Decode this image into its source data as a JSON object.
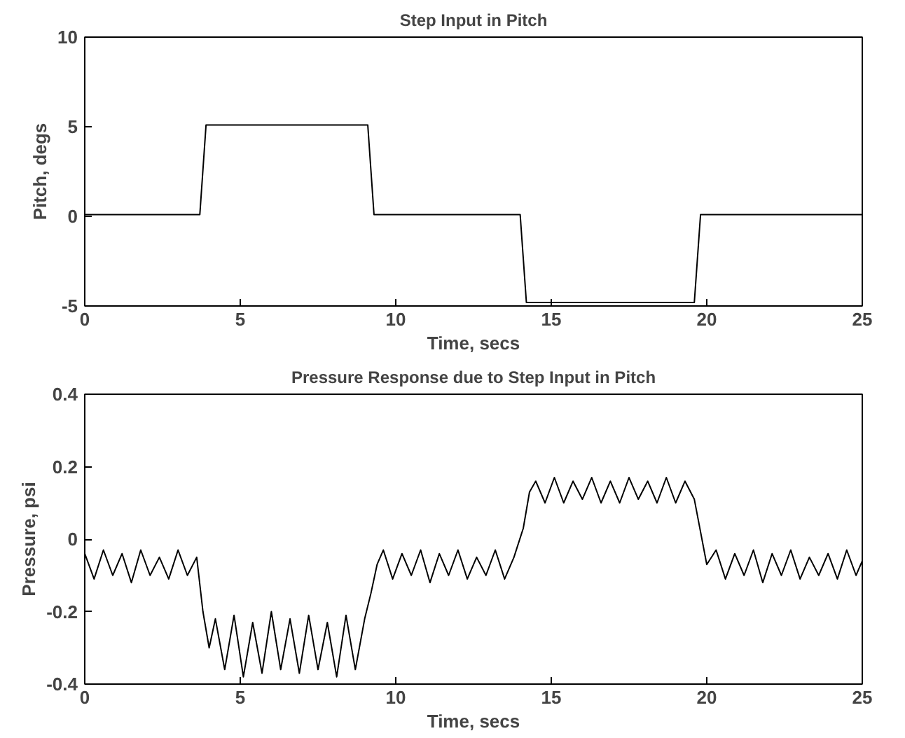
{
  "chart_data": [
    {
      "type": "line",
      "title": "Step Input in Pitch",
      "xlabel": "Time, secs",
      "ylabel": "Pitch, degs",
      "xlim": [
        0,
        25
      ],
      "ylim": [
        -5,
        10
      ],
      "xticks": [
        0,
        5,
        10,
        15,
        20,
        25
      ],
      "yticks": [
        -5,
        0,
        5,
        10
      ],
      "grid": false,
      "x": [
        0,
        3.7,
        3.9,
        9.1,
        9.3,
        14.0,
        14.2,
        19.6,
        19.8,
        25
      ],
      "series": [
        {
          "color": "#000000",
          "values": [
            0.1,
            0.1,
            5.1,
            5.1,
            0.1,
            0.1,
            -4.8,
            -4.8,
            0.1,
            0.1
          ]
        }
      ]
    },
    {
      "type": "line",
      "title": "Pressure Response due to Step Input in Pitch",
      "xlabel": "Time, secs",
      "ylabel": "Pressure, psi",
      "xlim": [
        0,
        25
      ],
      "ylim": [
        -0.4,
        0.4
      ],
      "xticks": [
        0,
        5,
        10,
        15,
        20,
        25
      ],
      "yticks": [
        -0.4,
        -0.2,
        0,
        0.2,
        0.4
      ],
      "grid": false,
      "x": [
        0,
        0.3,
        0.6,
        0.9,
        1.2,
        1.5,
        1.8,
        2.1,
        2.4,
        2.7,
        3.0,
        3.3,
        3.6,
        3.8,
        4.0,
        4.2,
        4.5,
        4.8,
        5.1,
        5.4,
        5.7,
        6.0,
        6.3,
        6.6,
        6.9,
        7.2,
        7.5,
        7.8,
        8.1,
        8.4,
        8.7,
        9.0,
        9.2,
        9.4,
        9.6,
        9.9,
        10.2,
        10.5,
        10.8,
        11.1,
        11.4,
        11.7,
        12.0,
        12.3,
        12.6,
        12.9,
        13.2,
        13.5,
        13.8,
        14.1,
        14.3,
        14.5,
        14.8,
        15.1,
        15.4,
        15.7,
        16.0,
        16.3,
        16.6,
        16.9,
        17.2,
        17.5,
        17.8,
        18.1,
        18.4,
        18.7,
        19.0,
        19.3,
        19.6,
        19.8,
        20.0,
        20.3,
        20.6,
        20.9,
        21.2,
        21.5,
        21.8,
        22.1,
        22.4,
        22.7,
        23.0,
        23.3,
        23.6,
        23.9,
        24.2,
        24.5,
        24.8,
        25.0
      ],
      "series": [
        {
          "color": "#000000",
          "values": [
            -0.04,
            -0.11,
            -0.03,
            -0.1,
            -0.04,
            -0.12,
            -0.03,
            -0.1,
            -0.05,
            -0.11,
            -0.03,
            -0.1,
            -0.05,
            -0.2,
            -0.3,
            -0.22,
            -0.36,
            -0.21,
            -0.38,
            -0.23,
            -0.37,
            -0.2,
            -0.36,
            -0.22,
            -0.37,
            -0.21,
            -0.36,
            -0.23,
            -0.38,
            -0.21,
            -0.36,
            -0.22,
            -0.15,
            -0.07,
            -0.03,
            -0.11,
            -0.04,
            -0.1,
            -0.03,
            -0.12,
            -0.04,
            -0.1,
            -0.03,
            -0.11,
            -0.05,
            -0.1,
            -0.03,
            -0.11,
            -0.05,
            0.03,
            0.13,
            0.16,
            0.1,
            0.17,
            0.1,
            0.16,
            0.11,
            0.17,
            0.1,
            0.16,
            0.1,
            0.17,
            0.11,
            0.16,
            0.1,
            0.17,
            0.1,
            0.16,
            0.11,
            0.02,
            -0.07,
            -0.03,
            -0.11,
            -0.04,
            -0.1,
            -0.03,
            -0.12,
            -0.04,
            -0.1,
            -0.03,
            -0.11,
            -0.05,
            -0.1,
            -0.04,
            -0.11,
            -0.03,
            -0.1,
            -0.06
          ]
        }
      ]
    }
  ]
}
